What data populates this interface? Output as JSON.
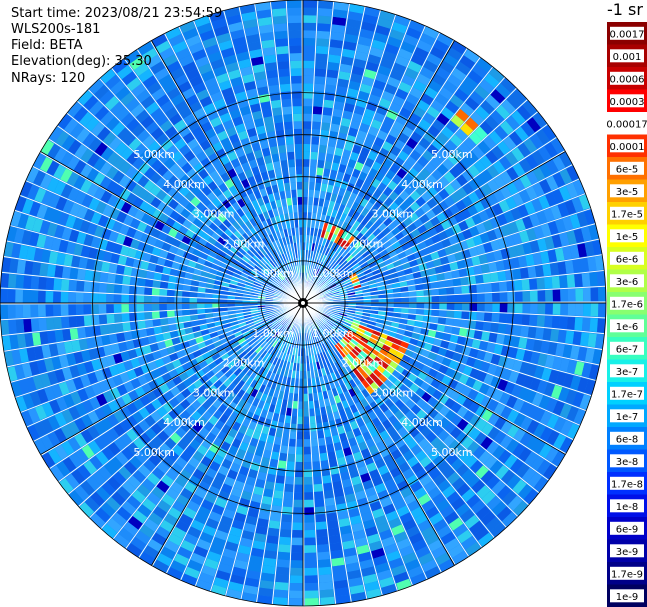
{
  "header": {
    "start_time": "Start time: 2023/08/21 23:54:59",
    "instrument": "WLS200s-181",
    "field": "Field: BETA",
    "elevation": "Elevation(deg): 35.30",
    "nrays": "NRays: 120"
  },
  "colorbar": {
    "unit": "-1 sr",
    "labels": [
      "0.0017",
      "0.001",
      "0.0006",
      "0.0003",
      "0.00017",
      "0.0001",
      "6e-5",
      "3e-5",
      "1.7e-5",
      "1e-5",
      "6e-6",
      "3e-6",
      "1.7e-6",
      "1e-6",
      "6e-7",
      "3e-7",
      "1.7e-7",
      "1e-7",
      "6e-8",
      "3e-8",
      "1.7e-8",
      "1e-8",
      "6e-9",
      "3e-9",
      "1.7e-9",
      "1e-9"
    ],
    "colors": [
      "#8b0000",
      "#a80000",
      "#c80000",
      "#ff0000",
      "#ffffff",
      "#ff3000",
      "#ff7000",
      "#ffa000",
      "#ffd000",
      "#ffff00",
      "#d8ff20",
      "#b0ff48",
      "#88ff70",
      "#60ff98",
      "#38ffc0",
      "#18f0e8",
      "#00d0ff",
      "#00a8ff",
      "#0080ff",
      "#0058ff",
      "#0030ff",
      "#0010e8",
      "#0000c8",
      "#0000a8",
      "#000088",
      "#000060"
    ]
  },
  "chart_data": {
    "type": "heatmap",
    "plot": "PPI",
    "range_rings": [
      {
        "range_km": 1,
        "label": "1.00km"
      },
      {
        "range_km": 2,
        "label": "2.00km"
      },
      {
        "range_km": 3,
        "label": "3.00km"
      },
      {
        "range_km": 4,
        "label": "4.00km"
      },
      {
        "range_km": 5,
        "label": "5.00km"
      }
    ],
    "max_range_km": 7.2,
    "rays": 120,
    "background_beta": "3e-8",
    "features": [
      {
        "name": "arc-echo-north",
        "azimuth_deg": [
          15,
          40
        ],
        "range_km": [
          1.6,
          1.9
        ],
        "beta": "1e-5"
      },
      {
        "name": "arc-echo-east",
        "azimuth_deg": [
          60,
          75
        ],
        "range_km": [
          1.1,
          1.4
        ],
        "beta": "1e-5"
      },
      {
        "name": "arc-echo-southeast",
        "azimuth_deg": [
          110,
          145
        ],
        "range_km": [
          1.2,
          2.6
        ],
        "beta": "3e-5"
      },
      {
        "name": "far-echo-northeast",
        "azimuth_deg": [
          38,
          47
        ],
        "range_km": [
          5.4,
          5.9
        ],
        "beta": "1.7e-5"
      }
    ]
  }
}
